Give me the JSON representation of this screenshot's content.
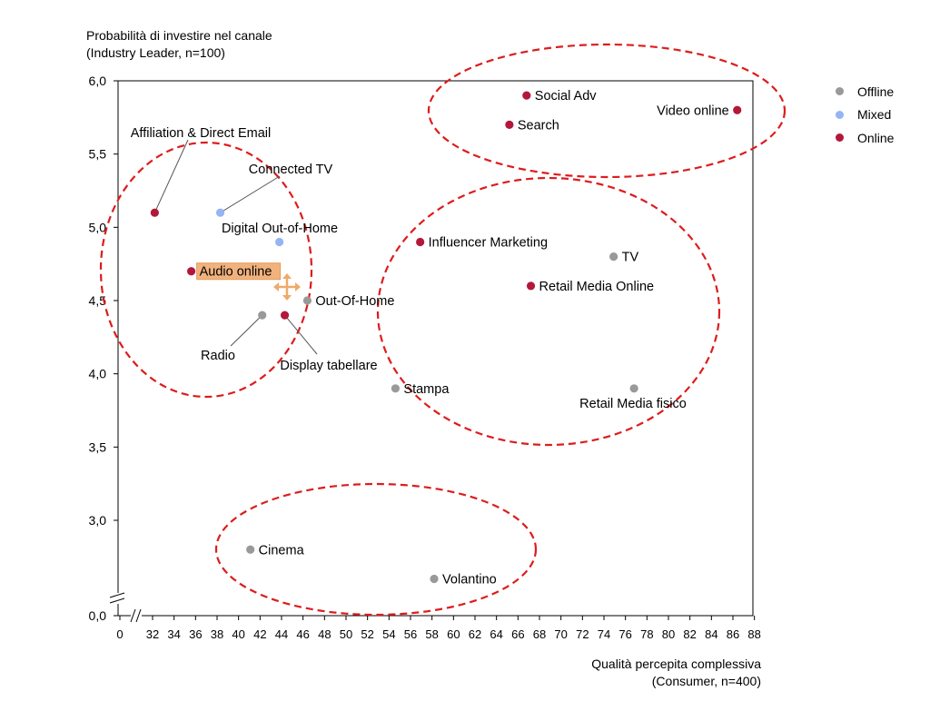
{
  "colors": {
    "offline": "#999999",
    "mixed": "#94b4f4",
    "online": "#b3173a",
    "ellipse": "#dd1c1c",
    "highlight": "#f2b27e"
  },
  "chart_data": {
    "type": "scatter",
    "ylabel_line1": "Probabilità di investire nel canale",
    "ylabel_line2": "(Industry Leader, n=100)",
    "xlabel_line1": "Qualità percepita complessiva",
    "xlabel_line2": "(Consumer, n=400)",
    "xlim": [
      0,
      88
    ],
    "ylim": [
      0,
      6
    ],
    "x_break_after": 0,
    "y_break_below": 2.4,
    "x_ticks": [
      0,
      32,
      34,
      36,
      38,
      40,
      42,
      44,
      46,
      48,
      50,
      52,
      54,
      56,
      58,
      60,
      62,
      64,
      66,
      68,
      70,
      72,
      74,
      76,
      78,
      80,
      82,
      84,
      86,
      88
    ],
    "y_ticks": [
      {
        "value": 0,
        "label": "0,0"
      },
      {
        "value": 3.0,
        "label": "3,0"
      },
      {
        "value": 3.5,
        "label": "3,5"
      },
      {
        "value": 4.0,
        "label": "4,0"
      },
      {
        "value": 4.5,
        "label": "4,5"
      },
      {
        "value": 5.0,
        "label": "5,0"
      },
      {
        "value": 5.5,
        "label": "5,5"
      },
      {
        "value": 6.0,
        "label": "6,0"
      }
    ],
    "legend": [
      {
        "key": "offline",
        "label": "Offline"
      },
      {
        "key": "mixed",
        "label": "Mixed"
      },
      {
        "key": "online",
        "label": "Online"
      }
    ],
    "points": [
      {
        "label": "Social Adv",
        "x": 66.8,
        "y": 5.9,
        "cat": "online"
      },
      {
        "label": "Video online",
        "x": 86.4,
        "y": 5.8,
        "cat": "online"
      },
      {
        "label": "Search",
        "x": 65.2,
        "y": 5.7,
        "cat": "online"
      },
      {
        "label": "Affiliation & Direct Email",
        "x": 32.2,
        "y": 5.1,
        "cat": "online"
      },
      {
        "label": "Connected TV",
        "x": 38.3,
        "y": 5.1,
        "cat": "mixed"
      },
      {
        "label": "Digital Out-of-Home",
        "x": 43.8,
        "y": 4.9,
        "cat": "mixed"
      },
      {
        "label": "Influencer Marketing",
        "x": 56.9,
        "y": 4.9,
        "cat": "online"
      },
      {
        "label": "TV",
        "x": 74.9,
        "y": 4.8,
        "cat": "offline"
      },
      {
        "label": "Audio online",
        "x": 35.6,
        "y": 4.7,
        "cat": "online"
      },
      {
        "label": "Retail Media Online",
        "x": 67.2,
        "y": 4.6,
        "cat": "online"
      },
      {
        "label": "Out-Of-Home",
        "x": 46.4,
        "y": 4.5,
        "cat": "offline"
      },
      {
        "label": "Radio",
        "x": 42.2,
        "y": 4.4,
        "cat": "offline"
      },
      {
        "label": "Display tabellare",
        "x": 44.3,
        "y": 4.4,
        "cat": "online"
      },
      {
        "label": "Stampa",
        "x": 54.6,
        "y": 3.9,
        "cat": "offline"
      },
      {
        "label": "Retail Media fisico",
        "x": 76.8,
        "y": 3.9,
        "cat": "offline"
      },
      {
        "label": "Cinema",
        "x": 41.1,
        "y": 2.8,
        "cat": "offline"
      },
      {
        "label": "Volantino",
        "x": 58.2,
        "y": 2.6,
        "cat": "offline"
      }
    ]
  }
}
